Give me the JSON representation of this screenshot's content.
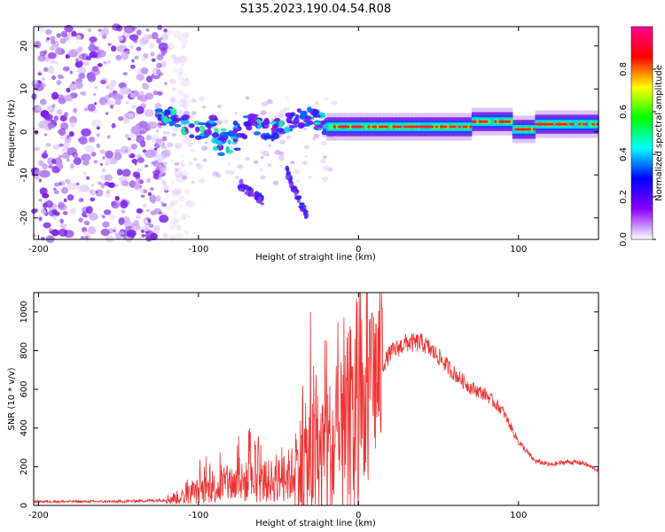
{
  "title": "S135.2023.190.04.54.R08",
  "chart_data": [
    {
      "type": "heatmap",
      "name": "spectrogram",
      "xlabel": "Height of straight line (km)",
      "ylabel": "Frequency (Hz)",
      "xlim": [
        -203,
        150
      ],
      "ylim": [
        -25,
        24.5
      ],
      "xticks": [
        -200,
        -100,
        0,
        100
      ],
      "yticks": [
        -20,
        -10,
        0,
        10,
        20
      ],
      "colorbar": {
        "label": "Normalized spectral amplitude",
        "range": [
          0,
          1
        ],
        "ticks": [
          0.0,
          0.2,
          0.4,
          0.6,
          0.8
        ],
        "tick_labels": [
          "0.0",
          "0.2",
          "0.4",
          "0.6",
          "0.8"
        ],
        "colormap": [
          "#ffffff",
          "#8800ff",
          "#0000ff",
          "#00ffff",
          "#00ff00",
          "#ffff00",
          "#ff0000",
          "#ff0090"
        ]
      },
      "features": {
        "noise_region_x": [
          -203,
          -120
        ],
        "carrier_line_x": [
          -20,
          150
        ],
        "carrier_frequency": [
          0.5,
          2.0
        ],
        "branches": [
          {
            "x": [
              -75,
              -60
            ],
            "y": [
              -12,
              -16
            ]
          },
          {
            "x": [
              -45,
              -32
            ],
            "y": [
              -9,
              -20
            ]
          }
        ]
      }
    },
    {
      "type": "line",
      "name": "snr",
      "xlabel": "Height of straight line (km)",
      "ylabel": "SNR (10 * v/v)",
      "xlim": [
        -203,
        150
      ],
      "ylim": [
        0,
        1100
      ],
      "xticks": [
        -200,
        -100,
        0,
        100
      ],
      "yticks": [
        0,
        200,
        400,
        600,
        800,
        1000
      ],
      "series": [
        {
          "color": "#ee3333",
          "envelope": {
            "x": [
              -203,
              -150,
              -130,
              -120,
              -110,
              -100,
              -90,
              -80,
              -70,
              -60,
              -50,
              -40,
              -30,
              -20,
              -10,
              0,
              5,
              10,
              20,
              30,
              40,
              50,
              60,
              70,
              80,
              90,
              100,
              110,
              120,
              130,
              140,
              150
            ],
            "y": [
              20,
              20,
              25,
              30,
              45,
              75,
              90,
              110,
              120,
              120,
              130,
              170,
              230,
              260,
              300,
              470,
              520,
              650,
              790,
              840,
              840,
              770,
              680,
              610,
              570,
              490,
              330,
              230,
              210,
              225,
              220,
              180
            ]
          },
          "spikes": [
            {
              "x": -75,
              "y": 360
            },
            {
              "x": -48,
              "y": 300
            },
            {
              "x": -35,
              "y": 550
            },
            {
              "x": -30,
              "y": 1000
            },
            {
              "x": -28,
              "y": 720
            },
            {
              "x": -20,
              "y": 850
            },
            {
              "x": -14,
              "y": 720
            },
            {
              "x": -10,
              "y": 580
            },
            {
              "x": -4,
              "y": 720
            },
            {
              "x": 2,
              "y": 960
            },
            {
              "x": 5,
              "y": 1100
            },
            {
              "x": 6,
              "y": 130
            },
            {
              "x": 8,
              "y": 860
            }
          ]
        }
      ]
    }
  ]
}
